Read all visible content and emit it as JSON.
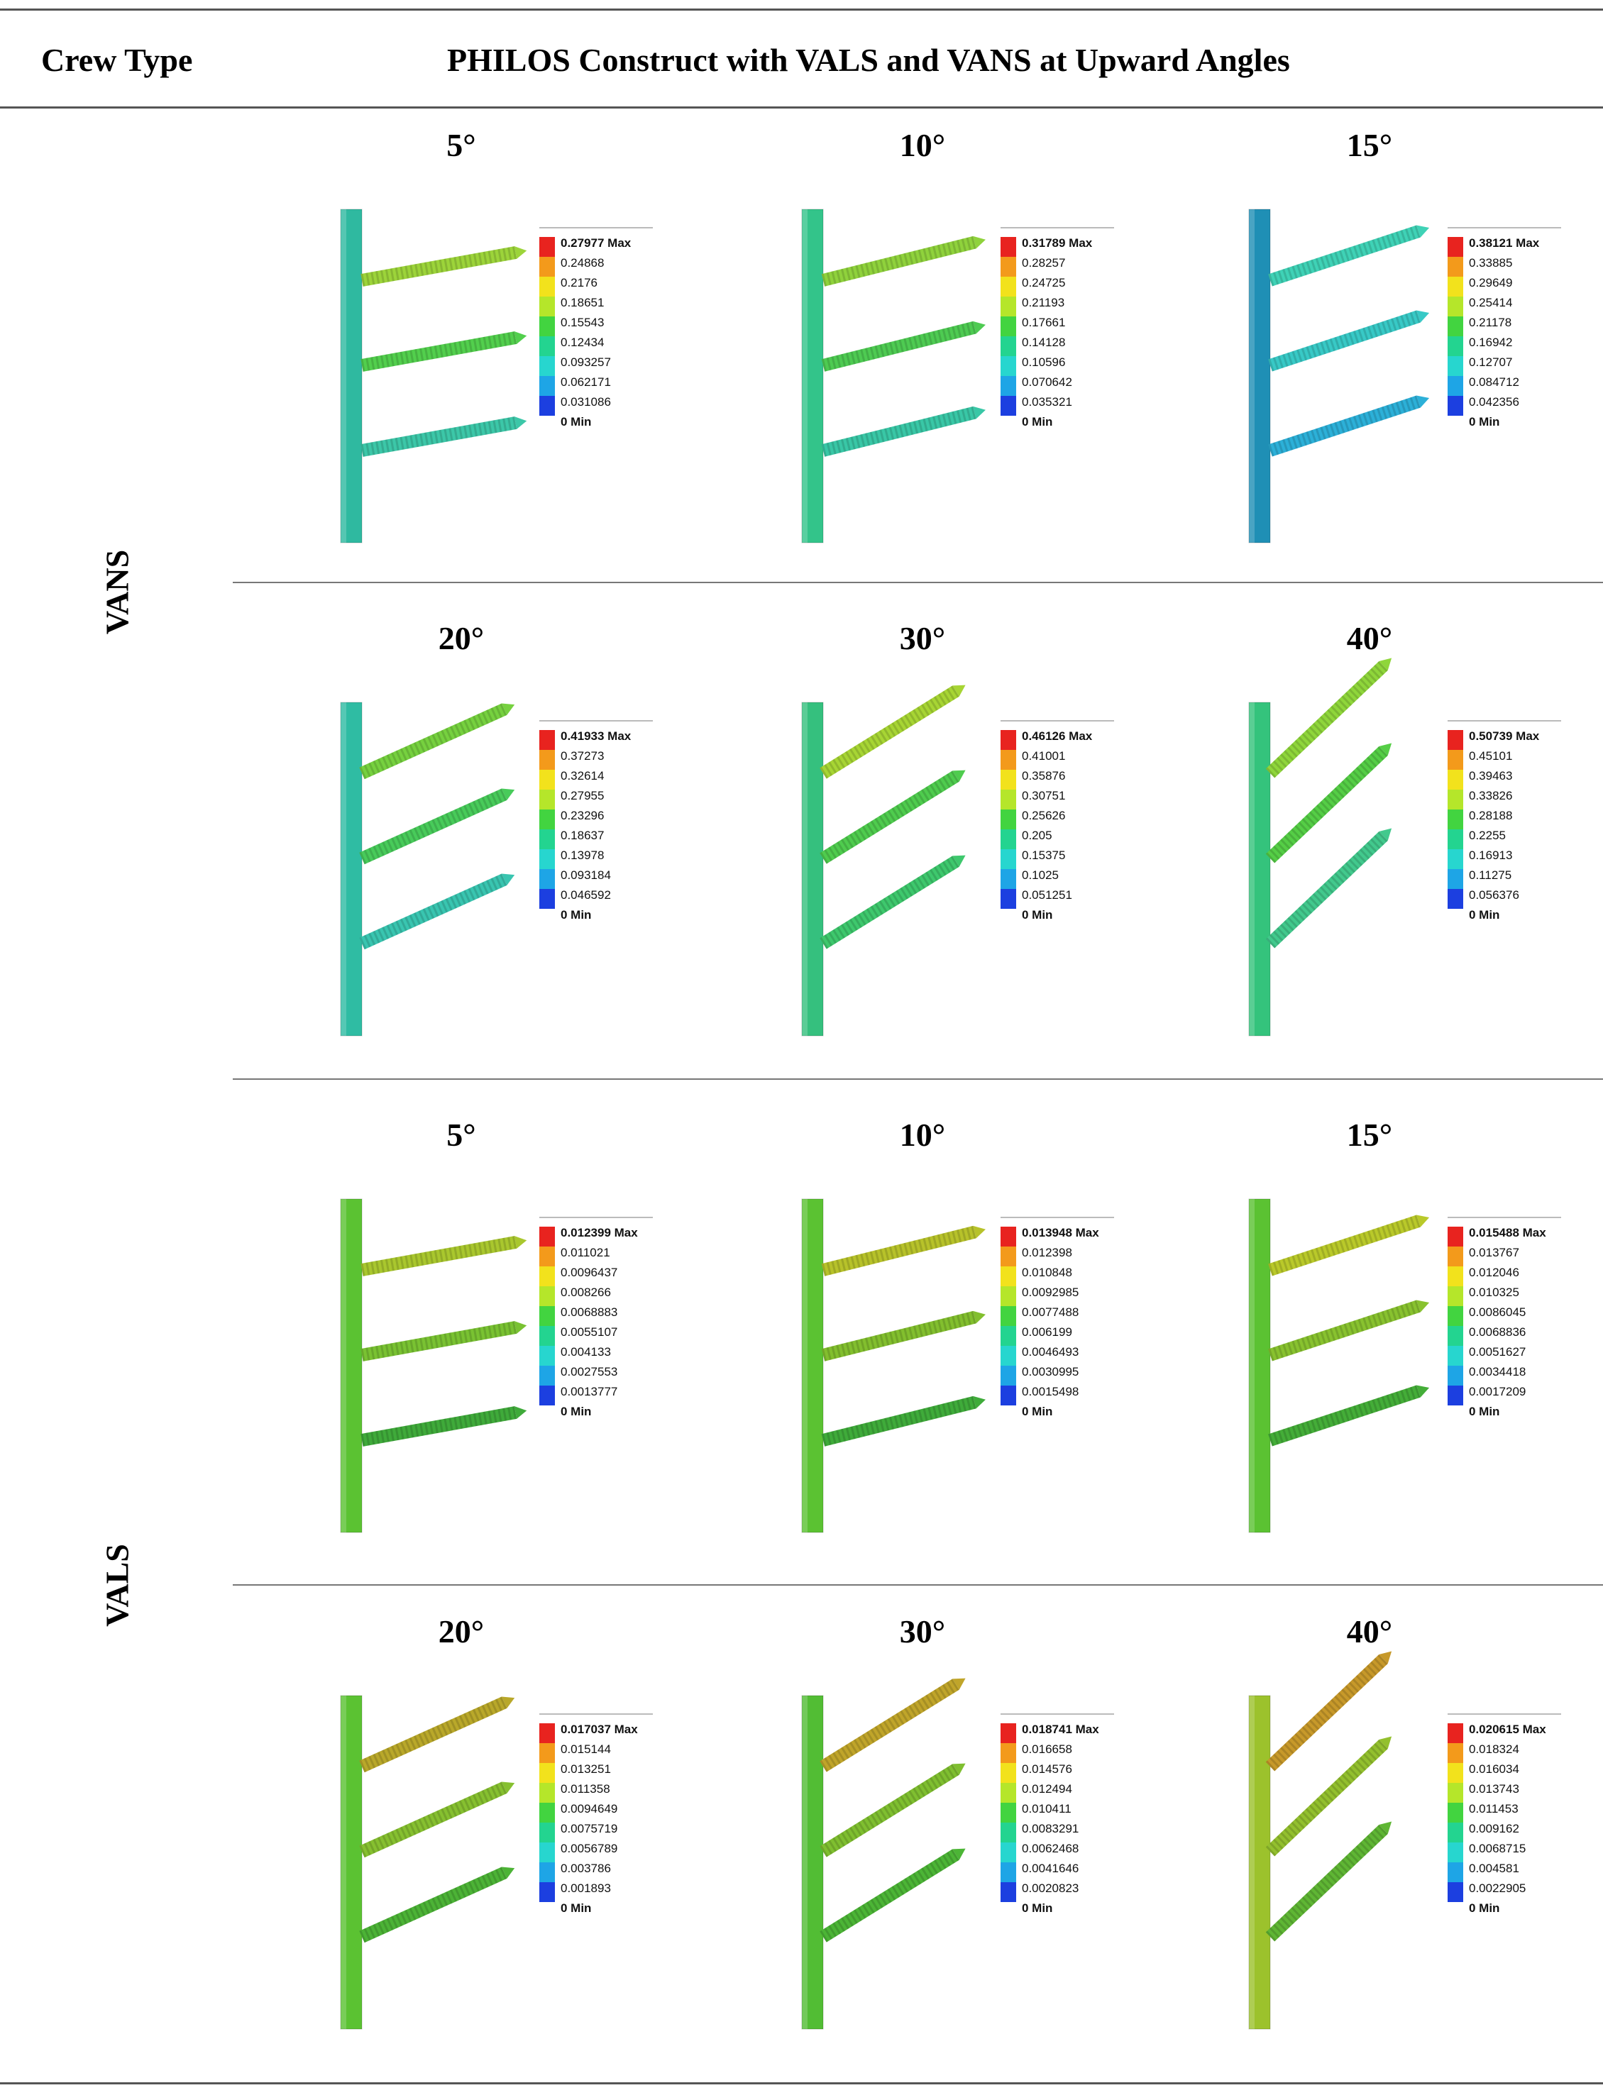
{
  "header": {
    "col1": "Crew Type",
    "col2": "PHILOS Construct with VALS and VANS at Upward Angles"
  },
  "groups": [
    {
      "label": "VANS",
      "rows": [
        {
          "cells": [
            {
              "angle": "5°",
              "values": [
                "0.27977 Max",
                "0.24868",
                "0.2176",
                "0.18651",
                "0.15543",
                "0.12434",
                "0.093257",
                "0.062171",
                "0.031086",
                "0 Min"
              ],
              "plate_color": "#2fb9a0",
              "screw_colors": [
                "#9cd43a",
                "#52cf4d",
                "#3cc7a8"
              ]
            },
            {
              "angle": "10°",
              "values": [
                "0.31789 Max",
                "0.28257",
                "0.24725",
                "0.21193",
                "0.17661",
                "0.14128",
                "0.10596",
                "0.070642",
                "0.035321",
                "0 Min"
              ],
              "plate_color": "#33c48a",
              "screw_colors": [
                "#8fd23c",
                "#4ecb52",
                "#39c7a6"
              ]
            },
            {
              "angle": "15°",
              "values": [
                "0.38121 Max",
                "0.33885",
                "0.29649",
                "0.25414",
                "0.21178",
                "0.16942",
                "0.12707",
                "0.084712",
                "0.042356",
                "0 Min"
              ],
              "plate_color": "#1f8fb5",
              "screw_colors": [
                "#3fd2b6",
                "#38c9c6",
                "#2cb0d8"
              ]
            }
          ]
        },
        {
          "cells": [
            {
              "angle": "20°",
              "values": [
                "0.41933 Max",
                "0.37273",
                "0.32614",
                "0.27955",
                "0.23296",
                "0.18637",
                "0.13978",
                "0.093184",
                "0.046592",
                "0 Min"
              ],
              "plate_color": "#2fbca3",
              "screw_colors": [
                "#76d13f",
                "#48cb5a",
                "#39c5b0"
              ]
            },
            {
              "angle": "30°",
              "values": [
                "0.46126 Max",
                "0.41001",
                "0.35876",
                "0.30751",
                "0.25626",
                "0.205",
                "0.15375",
                "0.1025",
                "0.051251",
                "0 Min"
              ],
              "plate_color": "#35c07e",
              "screw_colors": [
                "#a7d534",
                "#4fcc4e",
                "#3ec86d"
              ]
            },
            {
              "angle": "40°",
              "values": [
                "0.50739 Max",
                "0.45101",
                "0.39463",
                "0.33826",
                "0.28188",
                "0.2255",
                "0.16913",
                "0.11275",
                "0.056376",
                "0 Min"
              ],
              "plate_color": "#34c37c",
              "screw_colors": [
                "#8fd63b",
                "#55ce46",
                "#42c98d"
              ]
            }
          ]
        }
      ]
    },
    {
      "label": "VALS",
      "rows": [
        {
          "cells": [
            {
              "angle": "5°",
              "values": [
                "0.012399 Max",
                "0.011021",
                "0.0096437",
                "0.008266",
                "0.0068883",
                "0.0055107",
                "0.004133",
                "0.0027553",
                "0.0013777",
                "0 Min"
              ],
              "plate_color": "#5bc232",
              "screw_colors": [
                "#a9c72e",
                "#79c232",
                "#3faa3a"
              ]
            },
            {
              "angle": "10°",
              "values": [
                "0.013948 Max",
                "0.012398",
                "0.010848",
                "0.0092985",
                "0.0077488",
                "0.006199",
                "0.0046493",
                "0.0030995",
                "0.0015498",
                "0 Min"
              ],
              "plate_color": "#5bc232",
              "screw_colors": [
                "#b7c22a",
                "#82bf2e",
                "#3fab3a"
              ]
            },
            {
              "angle": "15°",
              "values": [
                "0.015488 Max",
                "0.013767",
                "0.012046",
                "0.010325",
                "0.0086045",
                "0.0068836",
                "0.0051627",
                "0.0034418",
                "0.0017209",
                "0 Min"
              ],
              "plate_color": "#5bc232",
              "screw_colors": [
                "#b9c92a",
                "#88c22f",
                "#44ad38"
              ]
            }
          ]
        },
        {
          "cells": [
            {
              "angle": "20°",
              "values": [
                "0.017037 Max",
                "0.015144",
                "0.013251",
                "0.011358",
                "0.0094649",
                "0.0075719",
                "0.0056789",
                "0.003786",
                "0.001893",
                "0 Min"
              ],
              "plate_color": "#5bc232",
              "screw_colors": [
                "#b9a82a",
                "#86c030",
                "#4cb336"
              ]
            },
            {
              "angle": "30°",
              "values": [
                "0.018741 Max",
                "0.016658",
                "0.014576",
                "0.012494",
                "0.010411",
                "0.0083291",
                "0.0062468",
                "0.0041646",
                "0.0020823",
                "0 Min"
              ],
              "plate_color": "#52bd34",
              "screw_colors": [
                "#c0a52a",
                "#7fbf30",
                "#4cb536"
              ]
            },
            {
              "angle": "40°",
              "values": [
                "0.020615 Max",
                "0.018324",
                "0.016034",
                "0.013743",
                "0.011453",
                "0.009162",
                "0.0068715",
                "0.004581",
                "0.0022905",
                "0 Min"
              ],
              "plate_color": "#9cc22c",
              "screw_colors": [
                "#c7992a",
                "#93c02e",
                "#5fb634"
              ]
            }
          ]
        }
      ]
    }
  ],
  "legend_colors": [
    "#e8231f",
    "#f39a1b",
    "#f2e21c",
    "#b5e62a",
    "#42d440",
    "#23d490",
    "#27d6cf",
    "#1ea5e6",
    "#1c3fe0"
  ]
}
